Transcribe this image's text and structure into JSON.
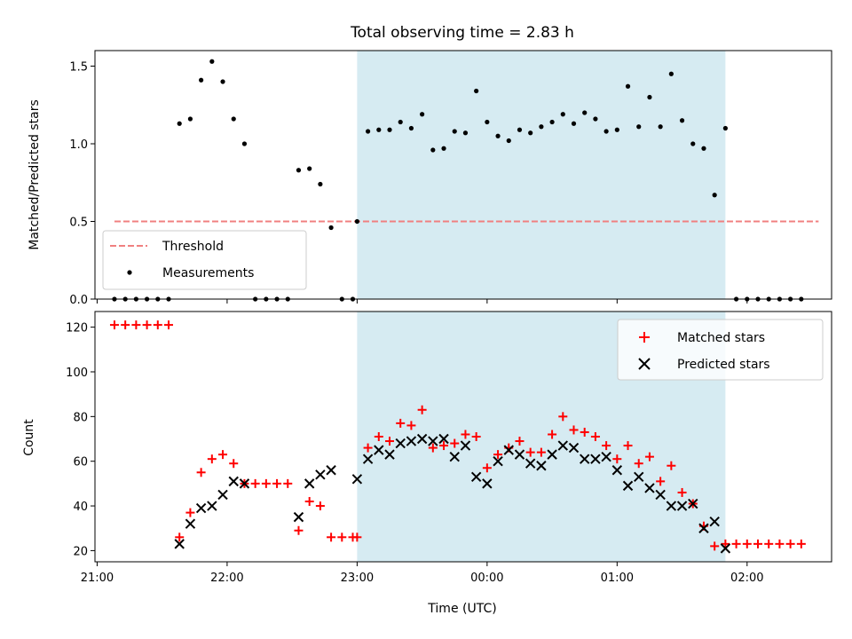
{
  "chart_data": [
    {
      "type": "scatter",
      "title": "Total observing time = 2.83 h",
      "xlabel": "",
      "ylabel": "Matched/Predicted stars",
      "ylim": [
        0,
        1.6
      ],
      "yticks": [
        "0.0",
        "0.5",
        "1.0",
        "1.5"
      ],
      "xticks": [
        "21:00",
        "22:00",
        "23:00",
        "00:00",
        "01:00",
        "02:00"
      ],
      "xlim": [
        "20:59",
        "02:39"
      ],
      "shaded_interval": [
        "23:00",
        "01:50"
      ],
      "shade_color": "#add8e6",
      "legend_position": "lower-left",
      "series": [
        {
          "name": "Threshold",
          "style": "dashed-line",
          "color": "#f08080",
          "x": [
            "21:08",
            "02:33"
          ],
          "y": [
            0.5,
            0.5
          ]
        },
        {
          "name": "Measurements",
          "style": "dot",
          "color": "#000000",
          "x": [
            "21:08",
            "21:13",
            "21:18",
            "21:23",
            "21:28",
            "21:33",
            "21:38",
            "21:43",
            "21:48",
            "21:53",
            "21:58",
            "22:03",
            "22:08",
            "22:13",
            "22:18",
            "22:23",
            "22:28",
            "22:33",
            "22:38",
            "22:43",
            "22:48",
            "22:53",
            "22:58",
            "23:00",
            "23:05",
            "23:10",
            "23:15",
            "23:20",
            "23:25",
            "23:30",
            "23:35",
            "23:40",
            "23:45",
            "23:50",
            "23:55",
            "00:00",
            "00:05",
            "00:10",
            "00:15",
            "00:20",
            "00:25",
            "00:30",
            "00:35",
            "00:40",
            "00:45",
            "00:50",
            "00:55",
            "01:00",
            "01:05",
            "01:10",
            "01:15",
            "01:20",
            "01:25",
            "01:30",
            "01:35",
            "01:40",
            "01:45",
            "01:50",
            "01:55",
            "02:00",
            "02:05",
            "02:10",
            "02:15",
            "02:20",
            "02:25"
          ],
          "y": [
            0,
            0,
            0,
            0,
            0,
            0,
            1.13,
            1.16,
            1.41,
            1.53,
            1.4,
            1.16,
            1.0,
            0,
            0,
            0,
            0,
            0.83,
            0.84,
            0.74,
            0.46,
            0,
            0,
            0.5,
            1.08,
            1.09,
            1.09,
            1.14,
            1.1,
            1.19,
            0.96,
            0.97,
            1.08,
            1.07,
            1.34,
            1.14,
            1.05,
            1.02,
            1.09,
            1.07,
            1.11,
            1.14,
            1.19,
            1.13,
            1.2,
            1.16,
            1.08,
            1.09,
            1.37,
            1.11,
            1.3,
            1.11,
            1.45,
            1.15,
            1.0,
            0.97,
            0.67,
            1.1,
            0,
            0,
            0,
            0,
            0,
            0,
            0
          ]
        }
      ]
    },
    {
      "type": "scatter",
      "title": "",
      "xlabel": "Time (UTC)",
      "ylabel": "Count",
      "ylim": [
        15,
        127
      ],
      "yticks": [
        "20",
        "40",
        "60",
        "80",
        "100",
        "120"
      ],
      "xticks": [
        "21:00",
        "22:00",
        "23:00",
        "00:00",
        "01:00",
        "02:00"
      ],
      "xlim": [
        "20:59",
        "02:39"
      ],
      "shaded_interval": [
        "23:00",
        "01:50"
      ],
      "shade_color": "#add8e6",
      "legend_position": "upper-right",
      "series": [
        {
          "name": "Matched stars",
          "marker": "+",
          "color": "#ff0000",
          "x": [
            "21:08",
            "21:13",
            "21:18",
            "21:23",
            "21:28",
            "21:33",
            "21:38",
            "21:43",
            "21:48",
            "21:53",
            "21:58",
            "22:03",
            "22:08",
            "22:13",
            "22:18",
            "22:23",
            "22:28",
            "22:33",
            "22:38",
            "22:43",
            "22:48",
            "22:53",
            "22:58",
            "23:00",
            "23:05",
            "23:10",
            "23:15",
            "23:20",
            "23:25",
            "23:30",
            "23:35",
            "23:40",
            "23:45",
            "23:50",
            "23:55",
            "00:00",
            "00:05",
            "00:10",
            "00:15",
            "00:20",
            "00:25",
            "00:30",
            "00:35",
            "00:40",
            "00:45",
            "00:50",
            "00:55",
            "01:00",
            "01:05",
            "01:10",
            "01:15",
            "01:20",
            "01:25",
            "01:30",
            "01:35",
            "01:40",
            "01:45",
            "01:50",
            "01:55",
            "02:00",
            "02:05",
            "02:10",
            "02:15",
            "02:20",
            "02:25"
          ],
          "y": [
            121,
            121,
            121,
            121,
            121,
            121,
            26,
            37,
            55,
            61,
            63,
            59,
            50,
            50,
            50,
            50,
            50,
            29,
            42,
            40,
            26,
            26,
            26,
            26,
            66,
            71,
            69,
            77,
            76,
            83,
            66,
            67,
            68,
            72,
            71,
            57,
            63,
            66,
            69,
            64,
            64,
            72,
            80,
            74,
            73,
            71,
            67,
            61,
            67,
            59,
            62,
            51,
            58,
            46,
            41,
            31,
            22,
            23,
            23,
            23,
            23,
            23,
            23,
            23,
            23
          ]
        },
        {
          "name": "Predicted stars",
          "marker": "x",
          "color": "#000000",
          "x": [
            "21:38",
            "21:43",
            "21:48",
            "21:53",
            "21:58",
            "22:03",
            "22:08",
            "22:33",
            "22:38",
            "22:43",
            "22:48",
            "23:00",
            "23:05",
            "23:10",
            "23:15",
            "23:20",
            "23:25",
            "23:30",
            "23:35",
            "23:40",
            "23:45",
            "23:50",
            "23:55",
            "00:00",
            "00:05",
            "00:10",
            "00:15",
            "00:20",
            "00:25",
            "00:30",
            "00:35",
            "00:40",
            "00:45",
            "00:50",
            "00:55",
            "01:00",
            "01:05",
            "01:10",
            "01:15",
            "01:20",
            "01:25",
            "01:30",
            "01:35",
            "01:40",
            "01:45",
            "01:50"
          ],
          "y": [
            23,
            32,
            39,
            40,
            45,
            51,
            50,
            35,
            50,
            54,
            56,
            52,
            61,
            65,
            63,
            68,
            69,
            70,
            69,
            70,
            62,
            67,
            53,
            50,
            60,
            65,
            63,
            59,
            58,
            63,
            67,
            66,
            61,
            61,
            62,
            56,
            49,
            53,
            48,
            45,
            40,
            40,
            41,
            30,
            33,
            21
          ]
        }
      ]
    }
  ]
}
